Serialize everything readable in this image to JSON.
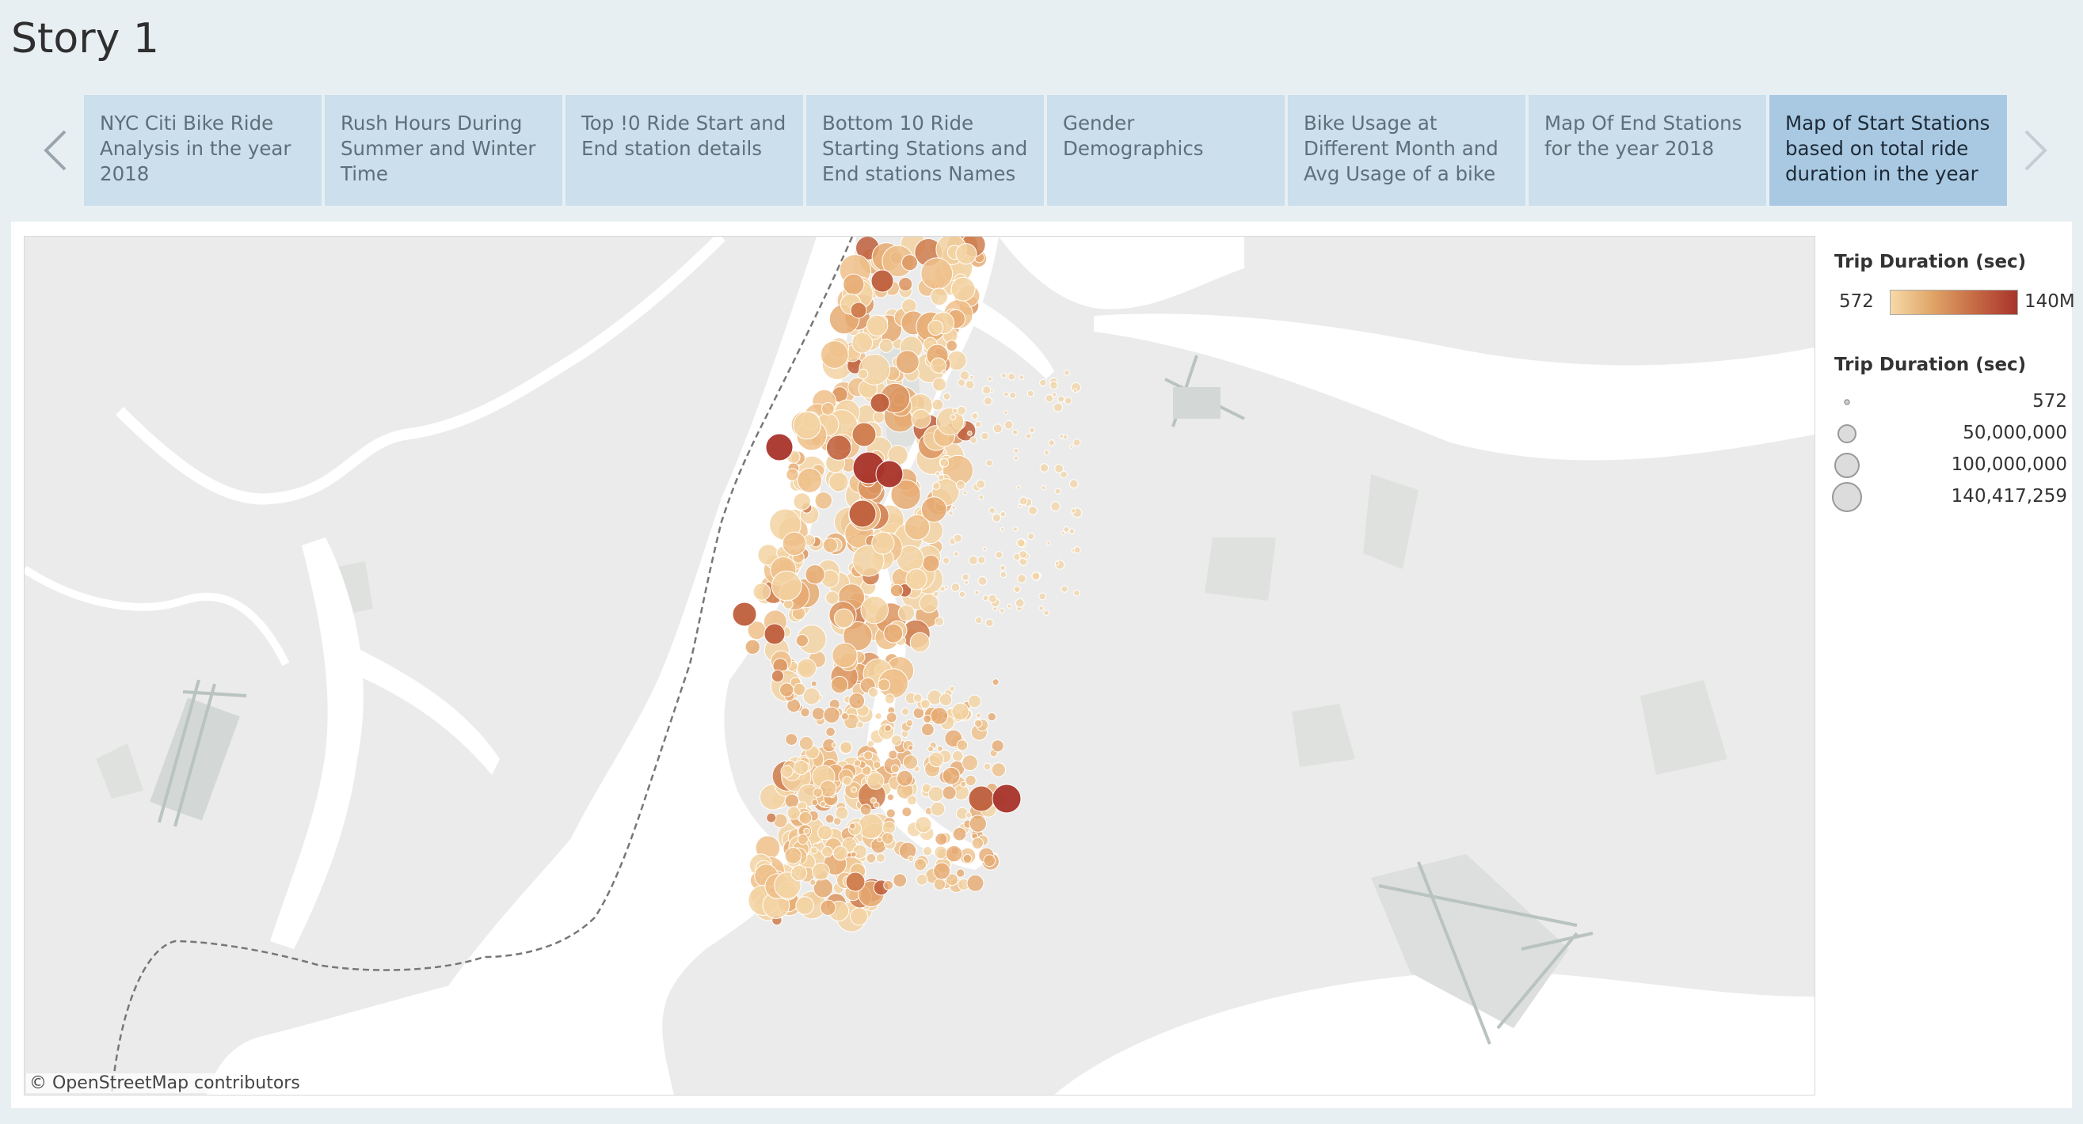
{
  "story": {
    "title": "Story 1"
  },
  "nav": {
    "prev_icon": "chevron-left-icon",
    "next_icon": "chevron-right-icon"
  },
  "tabs": [
    {
      "label": "NYC Citi Bike Ride Analysis in the year 2018",
      "active": false
    },
    {
      "label": "Rush Hours During Summer and Winter Time",
      "active": false
    },
    {
      "label": "Top !0 Ride Start and End station details",
      "active": false
    },
    {
      "label": "Bottom 10 Ride Starting Stations and End stations Names",
      "active": false
    },
    {
      "label": "Gender Demographics",
      "active": false
    },
    {
      "label": "Bike Usage at Different Month and Avg Usage of a bike",
      "active": false
    },
    {
      "label": "Map Of End Stations for the year 2018",
      "active": false
    },
    {
      "label": "Map of Start Stations based on total ride duration in the year",
      "active": true
    }
  ],
  "map": {
    "attribution": "© OpenStreetMap contributors"
  },
  "legend": {
    "color": {
      "title": "Trip Duration (sec)",
      "min_label": "572",
      "max_label": "140M",
      "ramp_colors": [
        "#f6d9a8",
        "#e0a467",
        "#c66a45",
        "#a8342b"
      ]
    },
    "size": {
      "title": "Trip Duration (sec)",
      "entries": [
        {
          "label": "572",
          "value": 572
        },
        {
          "label": "50,000,000",
          "value": 50000000
        },
        {
          "label": "100,000,000",
          "value": 100000000
        },
        {
          "label": "140,417,259",
          "value": 140417259
        }
      ]
    }
  },
  "colors": {
    "background": "#e8eff3",
    "tab": "#cbdfec",
    "tab_active": "#a9c9e3",
    "land": "#ebebeb",
    "water": "#ffffff",
    "park": "#d9dcd9"
  }
}
